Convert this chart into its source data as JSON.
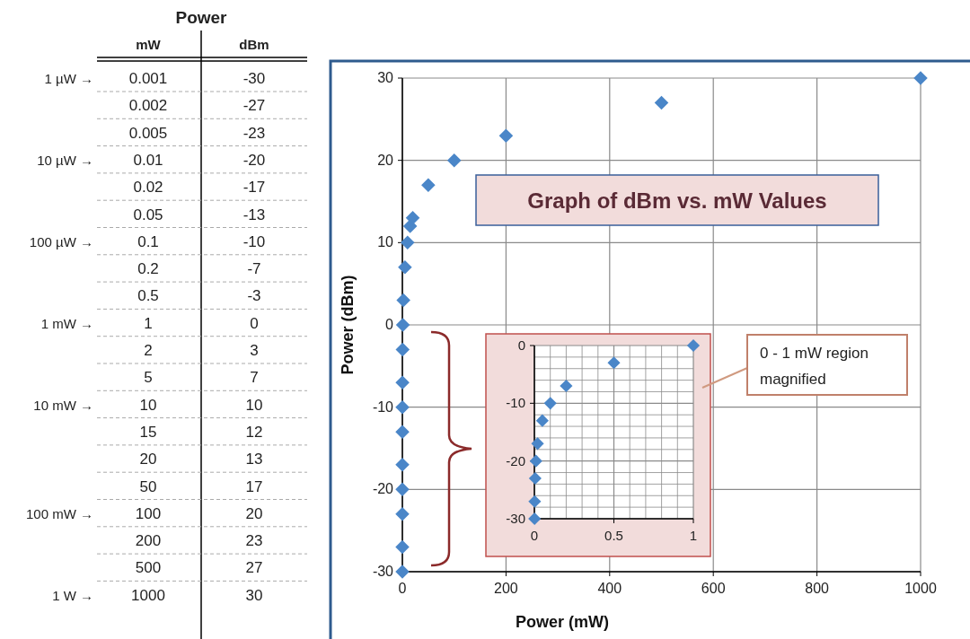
{
  "chart_data": [
    {
      "type": "heatmap",
      "title": "Power",
      "categories": [
        "mW",
        "dBm"
      ],
      "data_labels": true,
      "y_categories": [
        "1 µW →",
        null,
        null,
        "10 µW →",
        null,
        null,
        "100 µW →",
        null,
        null,
        "1 mW →",
        null,
        null,
        "10 mW →",
        null,
        null,
        null,
        "100 mW →",
        null,
        null,
        "1 W →"
      ],
      "cells": [
        [
          0.001,
          -30
        ],
        [
          0.002,
          -27
        ],
        [
          0.005,
          -23
        ],
        [
          0.01,
          -20
        ],
        [
          0.02,
          -17
        ],
        [
          0.05,
          -13
        ],
        [
          0.1,
          -10
        ],
        [
          0.2,
          -7
        ],
        [
          0.5,
          -3
        ],
        [
          1,
          0
        ],
        [
          2,
          3
        ],
        [
          5,
          7
        ],
        [
          10,
          10
        ],
        [
          15,
          12
        ],
        [
          20,
          13
        ],
        [
          50,
          17
        ],
        [
          100,
          20
        ],
        [
          200,
          23
        ],
        [
          500,
          27
        ],
        [
          1000,
          30
        ]
      ]
    },
    {
      "type": "scatter",
      "title": "Graph of dBm vs. mW Values",
      "xlabel": "Power (mW)",
      "ylabel": "Power (dBm)",
      "x": [
        0.001,
        0.002,
        0.005,
        0.01,
        0.02,
        0.05,
        0.1,
        0.2,
        0.5,
        1,
        2,
        5,
        10,
        15,
        20,
        50,
        100,
        200,
        500,
        1000
      ],
      "values": [
        -30,
        -27,
        -23,
        -20,
        -17,
        -13,
        -10,
        -7,
        -3,
        0,
        3,
        7,
        10,
        12,
        13,
        17,
        20,
        23,
        27,
        30
      ],
      "color": "#4a86c8",
      "marker": "diamond",
      "grid": true,
      "xlim": [
        0,
        1000
      ],
      "xticks": [
        0,
        200,
        400,
        600,
        800,
        1000
      ],
      "ylim": [
        -30,
        30
      ],
      "yticks": [
        -30,
        -20,
        -10,
        0,
        10,
        20,
        30
      ]
    },
    {
      "type": "scatter",
      "x": [
        0.001,
        0.002,
        0.005,
        0.01,
        0.02,
        0.05,
        0.1,
        0.2,
        0.5,
        1
      ],
      "values": [
        -30,
        -27,
        -23,
        -20,
        -17,
        -13,
        -10,
        -7,
        -3,
        0
      ],
      "color": "#4a86c8",
      "marker": "diamond",
      "grid": true,
      "xlim": [
        0,
        1
      ],
      "xticks": [
        0,
        {
          "value": 0.1,
          "label": null
        },
        {
          "value": 0.2,
          "label": null
        },
        {
          "value": 0.3,
          "label": null
        },
        {
          "value": 0.4,
          "label": null
        },
        0.5,
        {
          "value": 0.6,
          "label": null
        },
        {
          "value": 0.7,
          "label": null
        },
        {
          "value": 0.8,
          "label": null
        },
        {
          "value": 0.9,
          "label": null
        },
        1
      ],
      "ylim": [
        -30,
        0
      ],
      "yticks": [
        -30,
        {
          "value": -28,
          "label": null
        },
        {
          "value": -26,
          "label": null
        },
        {
          "value": -24,
          "label": null
        },
        {
          "value": -22,
          "label": null
        },
        -20,
        {
          "value": -18,
          "label": null
        },
        {
          "value": -16,
          "label": null
        },
        {
          "value": -14,
          "label": null
        },
        {
          "value": -12,
          "label": null
        },
        -10,
        {
          "value": -8,
          "label": null
        },
        {
          "value": -6,
          "label": null
        },
        {
          "value": -4,
          "label": null
        },
        {
          "value": -2,
          "label": null
        },
        0
      ],
      "annotations": [
        "0 - 1 mW region magnified"
      ]
    }
  ]
}
